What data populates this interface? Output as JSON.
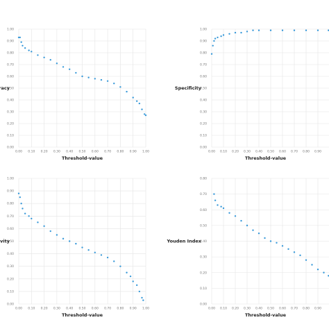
{
  "chart_data": [
    {
      "type": "scatter",
      "x_label": "Threshold-value",
      "y_label": "Accuracy",
      "color": "#3a9ad9",
      "grid": true,
      "x": [
        0.0,
        0.01,
        0.02,
        0.03,
        0.05,
        0.08,
        0.1,
        0.15,
        0.2,
        0.25,
        0.3,
        0.35,
        0.4,
        0.45,
        0.5,
        0.55,
        0.6,
        0.65,
        0.7,
        0.75,
        0.8,
        0.85,
        0.9,
        0.93,
        0.95,
        0.97,
        0.99,
        1.0
      ],
      "values": [
        0.93,
        0.93,
        0.89,
        0.86,
        0.84,
        0.82,
        0.81,
        0.78,
        0.76,
        0.74,
        0.71,
        0.68,
        0.66,
        0.63,
        0.6,
        0.59,
        0.58,
        0.57,
        0.56,
        0.54,
        0.51,
        0.47,
        0.42,
        0.39,
        0.37,
        0.32,
        0.28,
        0.27
      ],
      "xlim": [
        0,
        1
      ],
      "ylim": [
        0,
        1
      ],
      "xticks": [
        {
          "value": 0,
          "label": "0.00"
        },
        {
          "value": 0.1,
          "label": "0.10"
        },
        {
          "value": 0.2,
          "label": "0.20"
        },
        {
          "value": 0.3,
          "label": "0.30"
        },
        {
          "value": 0.4,
          "label": "0.40"
        },
        {
          "value": 0.5,
          "label": "0.50"
        },
        {
          "value": 0.6,
          "label": "0.60"
        },
        {
          "value": 0.7,
          "label": "0.70"
        },
        {
          "value": 0.8,
          "label": "0.80"
        },
        {
          "value": 0.9,
          "label": "0.90"
        },
        {
          "value": 1,
          "label": "1.00"
        }
      ],
      "yticks": [
        {
          "value": 0,
          "label": "0.00"
        },
        {
          "value": 0.1,
          "label": "0.10"
        },
        {
          "value": 0.2,
          "label": "0.20"
        },
        {
          "value": 0.3,
          "label": "0.30"
        },
        {
          "value": 0.4,
          "label": "0.40"
        },
        {
          "value": 0.5,
          "label": "0.50"
        },
        {
          "value": 0.6,
          "label": "0.60"
        },
        {
          "value": 0.7,
          "label": "0.70"
        },
        {
          "value": 0.8,
          "label": "0.80"
        },
        {
          "value": 0.9,
          "label": "0.90"
        },
        {
          "value": 1,
          "label": "1.00"
        }
      ]
    },
    {
      "type": "scatter",
      "x_label": "Threshold-value",
      "y_label": "Specificity",
      "color": "#3a9ad9",
      "grid": true,
      "x": [
        0.0,
        0.01,
        0.02,
        0.03,
        0.05,
        0.08,
        0.1,
        0.15,
        0.2,
        0.25,
        0.3,
        0.35,
        0.4,
        0.5,
        0.6,
        0.7,
        0.8,
        0.9,
        0.99
      ],
      "values": [
        0.79,
        0.86,
        0.9,
        0.92,
        0.93,
        0.94,
        0.95,
        0.96,
        0.97,
        0.97,
        0.98,
        0.99,
        0.99,
        0.99,
        0.99,
        0.99,
        0.99,
        0.99,
        0.99
      ],
      "xlim": [
        0,
        1
      ],
      "ylim": [
        0,
        1
      ],
      "xticks": [
        {
          "value": 0,
          "label": "0.00"
        },
        {
          "value": 0.1,
          "label": "0.10"
        },
        {
          "value": 0.2,
          "label": "0.20"
        },
        {
          "value": 0.3,
          "label": "0.30"
        },
        {
          "value": 0.4,
          "label": "0.40"
        },
        {
          "value": 0.5,
          "label": "0.50"
        },
        {
          "value": 0.6,
          "label": "0.60"
        },
        {
          "value": 0.7,
          "label": "0.70"
        },
        {
          "value": 0.8,
          "label": "0.80"
        },
        {
          "value": 0.9,
          "label": "0.90"
        }
      ],
      "yticks": [
        {
          "value": 0,
          "label": "0.00"
        },
        {
          "value": 0.1,
          "label": "0.10"
        },
        {
          "value": 0.2,
          "label": "0.20"
        },
        {
          "value": 0.3,
          "label": "0.30"
        },
        {
          "value": 0.4,
          "label": "0.40"
        },
        {
          "value": 0.5,
          "label": "0.50"
        },
        {
          "value": 0.6,
          "label": "0.60"
        },
        {
          "value": 0.7,
          "label": "0.70"
        },
        {
          "value": 0.8,
          "label": "0.80"
        },
        {
          "value": 0.9,
          "label": "0.90"
        },
        {
          "value": 1,
          "label": "1.00"
        }
      ]
    },
    {
      "type": "scatter",
      "x_label": "Threshold-value",
      "y_label": "Sensitivity",
      "color": "#3a9ad9",
      "grid": true,
      "x": [
        0.0,
        0.01,
        0.02,
        0.03,
        0.05,
        0.08,
        0.1,
        0.15,
        0.2,
        0.25,
        0.3,
        0.35,
        0.4,
        0.45,
        0.5,
        0.55,
        0.6,
        0.65,
        0.7,
        0.75,
        0.8,
        0.85,
        0.88,
        0.9,
        0.93,
        0.95,
        0.97,
        0.98
      ],
      "values": [
        0.88,
        0.85,
        0.8,
        0.76,
        0.72,
        0.7,
        0.68,
        0.65,
        0.62,
        0.58,
        0.55,
        0.52,
        0.5,
        0.48,
        0.45,
        0.43,
        0.41,
        0.39,
        0.37,
        0.34,
        0.3,
        0.25,
        0.22,
        0.18,
        0.15,
        0.1,
        0.05,
        0.03
      ],
      "xlim": [
        0,
        1
      ],
      "ylim": [
        0,
        1
      ],
      "xticks": [
        {
          "value": 0,
          "label": "0.00"
        },
        {
          "value": 0.1,
          "label": "0.10"
        },
        {
          "value": 0.2,
          "label": "0.20"
        },
        {
          "value": 0.3,
          "label": "0.30"
        },
        {
          "value": 0.4,
          "label": "0.40"
        },
        {
          "value": 0.5,
          "label": "0.50"
        },
        {
          "value": 0.6,
          "label": "0.60"
        },
        {
          "value": 0.7,
          "label": "0.70"
        },
        {
          "value": 0.8,
          "label": "0.80"
        },
        {
          "value": 0.9,
          "label": "0.90"
        },
        {
          "value": 1,
          "label": "1.00"
        }
      ],
      "yticks": [
        {
          "value": 0,
          "label": "0.00"
        },
        {
          "value": 0.1,
          "label": "0.10"
        },
        {
          "value": 0.2,
          "label": "0.20"
        },
        {
          "value": 0.3,
          "label": "0.30"
        },
        {
          "value": 0.4,
          "label": "0.40"
        },
        {
          "value": 0.5,
          "label": "0.50"
        },
        {
          "value": 0.6,
          "label": "0.60"
        },
        {
          "value": 0.7,
          "label": "0.70"
        },
        {
          "value": 0.8,
          "label": "0.80"
        },
        {
          "value": 0.9,
          "label": "0.90"
        },
        {
          "value": 1,
          "label": "1.00"
        }
      ]
    },
    {
      "type": "scatter",
      "x_label": "Threshold-value",
      "y_label": "Youden Index",
      "color": "#3a9ad9",
      "grid": true,
      "x": [
        0.02,
        0.03,
        0.05,
        0.08,
        0.1,
        0.15,
        0.2,
        0.25,
        0.3,
        0.35,
        0.4,
        0.45,
        0.5,
        0.55,
        0.6,
        0.65,
        0.7,
        0.75,
        0.8,
        0.85,
        0.9,
        0.95,
        0.99
      ],
      "values": [
        0.7,
        0.66,
        0.63,
        0.62,
        0.61,
        0.58,
        0.56,
        0.53,
        0.5,
        0.47,
        0.45,
        0.42,
        0.4,
        0.39,
        0.37,
        0.35,
        0.33,
        0.31,
        0.28,
        0.25,
        0.22,
        0.2,
        0.18
      ],
      "xlim": [
        0,
        1
      ],
      "ylim": [
        0,
        0.8
      ],
      "xticks": [
        {
          "value": 0,
          "label": "0.00"
        },
        {
          "value": 0.1,
          "label": "0.10"
        },
        {
          "value": 0.2,
          "label": "0.20"
        },
        {
          "value": 0.3,
          "label": "0.30"
        },
        {
          "value": 0.4,
          "label": "0.40"
        },
        {
          "value": 0.5,
          "label": "0.50"
        },
        {
          "value": 0.6,
          "label": "0.60"
        },
        {
          "value": 0.7,
          "label": "0.70"
        },
        {
          "value": 0.8,
          "label": "0.80"
        },
        {
          "value": 0.9,
          "label": "0.90"
        }
      ],
      "yticks": [
        {
          "value": 0,
          "label": "0.00"
        },
        {
          "value": 0.1,
          "label": "0.10"
        },
        {
          "value": 0.2,
          "label": "0.20"
        },
        {
          "value": 0.3,
          "label": "0.30"
        },
        {
          "value": 0.4,
          "label": "0.40"
        },
        {
          "value": 0.5,
          "label": "0.50"
        },
        {
          "value": 0.6,
          "label": "0.60"
        },
        {
          "value": 0.7,
          "label": "0.70"
        },
        {
          "value": 0.8,
          "label": "0.80"
        }
      ]
    }
  ]
}
